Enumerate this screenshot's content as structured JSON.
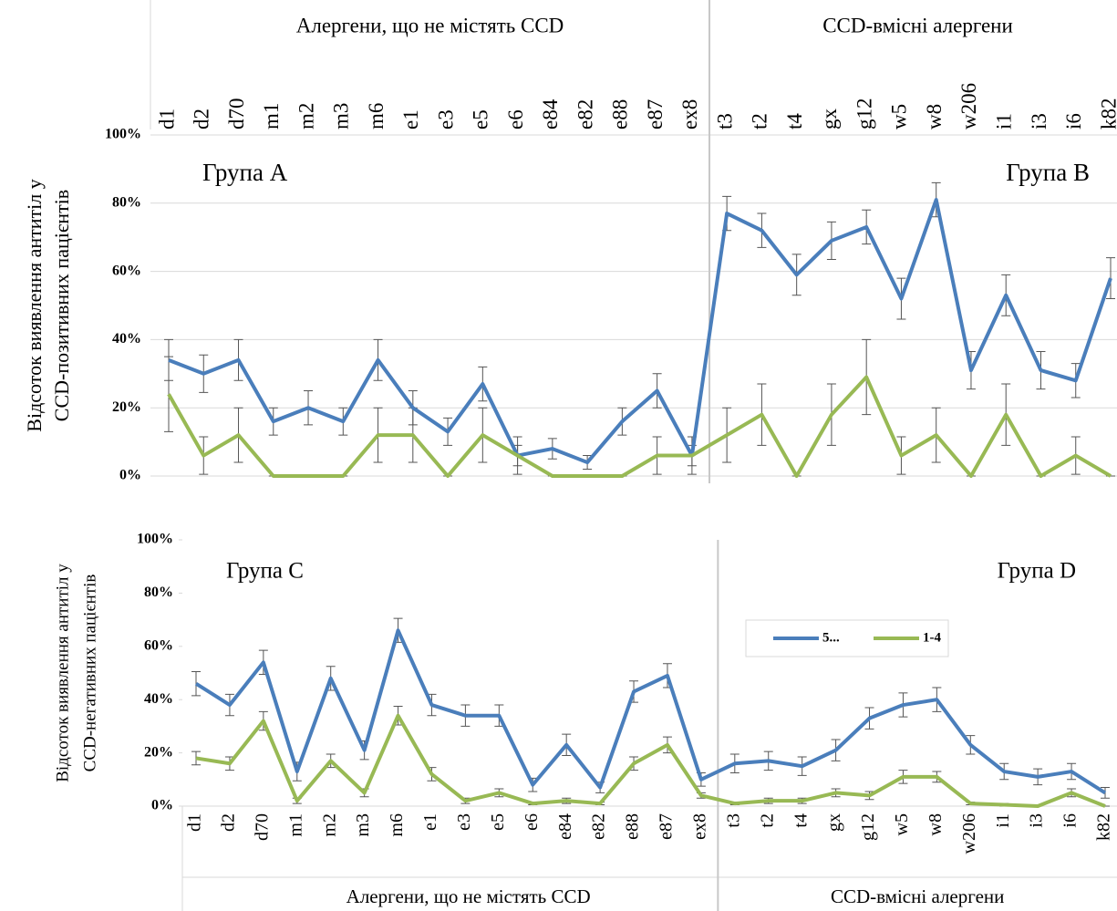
{
  "chart_data": [
    {
      "type": "line",
      "group_labels": [
        "Алергени, що не містять CCD",
        "CCD-вмісні алергени"
      ],
      "annotations": [
        "Група A",
        "Група B"
      ],
      "ylabel": [
        "Відсоток виявлення антитіл у",
        "CCD-позитивних пацієнтів"
      ],
      "category_axis": "top",
      "categories": [
        "d1",
        "d2",
        "d70",
        "m1",
        "m2",
        "m3",
        "m6",
        "e1",
        "e3",
        "e5",
        "e6",
        "e84",
        "e82",
        "e88",
        "e87",
        "ex8",
        "t3",
        "t2",
        "t4",
        "gx",
        "g12",
        "w5",
        "w8",
        "w206",
        "i1",
        "i3",
        "i6",
        "k82"
      ],
      "series": [
        {
          "color": "#4a7ebb",
          "values": [
            34,
            30,
            34,
            16,
            20,
            16,
            34,
            20,
            13,
            27,
            6,
            8,
            4,
            16,
            25,
            6,
            77,
            72,
            59,
            69,
            73,
            52,
            81,
            31,
            53,
            31,
            28,
            58
          ],
          "errors": [
            6,
            5.5,
            6,
            4,
            5,
            4,
            6,
            5,
            4,
            5,
            3,
            3,
            2,
            4,
            5,
            3,
            5,
            5,
            6,
            5.5,
            5,
            6,
            5,
            5.5,
            6,
            5.5,
            5,
            6
          ]
        },
        {
          "color": "#98b954",
          "values": [
            24,
            6,
            12,
            0,
            0,
            0,
            12,
            12,
            0,
            12,
            6,
            0,
            0,
            0,
            6,
            6,
            12,
            18,
            0,
            18,
            29,
            6,
            12,
            0,
            18,
            0,
            6,
            0
          ],
          "errors": [
            11,
            5.5,
            8,
            0,
            0,
            0,
            8,
            8,
            0,
            8,
            5.5,
            0,
            0,
            0,
            5.5,
            5.5,
            8,
            9,
            0,
            9,
            11,
            5.5,
            8,
            0,
            9,
            0,
            5.5,
            0
          ]
        }
      ],
      "ylim": [
        0,
        100
      ],
      "yticks": [
        {
          "value": 0,
          "label": "0%"
        },
        {
          "value": 20,
          "label": "20%"
        },
        {
          "value": 40,
          "label": "40%"
        },
        {
          "value": 60,
          "label": "60%"
        },
        {
          "value": 80,
          "label": "80%"
        },
        {
          "value": 100,
          "label": "100%"
        }
      ],
      "grid": true
    },
    {
      "type": "line",
      "group_labels": [
        "Алергени, що не містять CCD",
        "CCD-вмісні алергени"
      ],
      "annotations": [
        "Група C",
        "Група D"
      ],
      "ylabel": [
        "Відсоток виявлення антитіл у",
        "CCD-негативних пацієнтів"
      ],
      "category_axis": "bottom",
      "categories": [
        "d1",
        "d2",
        "d70",
        "m1",
        "m2",
        "m3",
        "m6",
        "e1",
        "e3",
        "e5",
        "e6",
        "e84",
        "e82",
        "e88",
        "e87",
        "ex8",
        "t3",
        "t2",
        "t4",
        "gx",
        "g12",
        "w5",
        "w8",
        "w206",
        "i1",
        "i3",
        "i6",
        "k82"
      ],
      "series": [
        {
          "name": "5...",
          "color": "#4a7ebb",
          "values": [
            46,
            38,
            54,
            13,
            48,
            21,
            66,
            38,
            34,
            34,
            8,
            23,
            7,
            43,
            49,
            10,
            16,
            17,
            15,
            21,
            33,
            38,
            40,
            23,
            13,
            11,
            13,
            5
          ],
          "errors": [
            4.5,
            4,
            4.5,
            3.5,
            4.5,
            3.5,
            4.5,
            4,
            4,
            4,
            2.5,
            4,
            2,
            4,
            4.5,
            2.5,
            3.5,
            3.5,
            3.5,
            4,
            4,
            4.5,
            4.5,
            3.5,
            3,
            3,
            3,
            2
          ]
        },
        {
          "name": "1-4",
          "color": "#98b954",
          "values": [
            18,
            16,
            32,
            2,
            17,
            5,
            34,
            12,
            2,
            5,
            1,
            2,
            1,
            16,
            23,
            4,
            1,
            2,
            2,
            5,
            4,
            11,
            11,
            1,
            0.5,
            0,
            5,
            0
          ],
          "errors": [
            2.5,
            2.5,
            3.5,
            1,
            2.5,
            1.5,
            3.5,
            2.5,
            1,
            1.5,
            0.5,
            1,
            0.5,
            2.5,
            3,
            1,
            0.5,
            1,
            1,
            1.5,
            1.5,
            2.5,
            2,
            0.5,
            0.5,
            0,
            1.5,
            0
          ]
        }
      ],
      "ylim": [
        0,
        100
      ],
      "yticks": [
        {
          "value": 0,
          "label": "0%"
        },
        {
          "value": 20,
          "label": "20%"
        },
        {
          "value": 40,
          "label": "40%"
        },
        {
          "value": 60,
          "label": "60%"
        },
        {
          "value": 80,
          "label": "80%"
        },
        {
          "value": 100,
          "label": "100%"
        }
      ],
      "grid": false,
      "legend": "right"
    }
  ]
}
